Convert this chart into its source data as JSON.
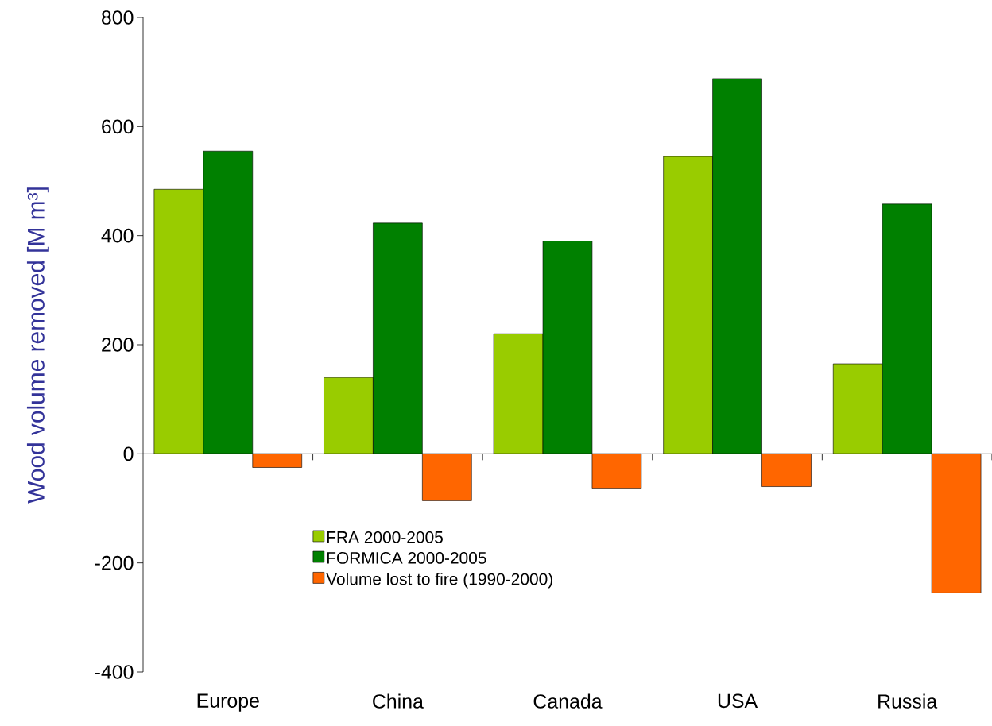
{
  "chart_data": {
    "type": "bar",
    "ylabel": "Wood volume removed [M m³]",
    "categories": [
      "Europe",
      "China",
      "Canada",
      "USA",
      "Russia"
    ],
    "series": [
      {
        "name": "FRA 2000-2005",
        "color": "#99cc00",
        "values": [
          485,
          140,
          220,
          545,
          165
        ]
      },
      {
        "name": "FORMICA 2000-2005",
        "color": "#008000",
        "values": [
          555,
          423,
          390,
          688,
          458
        ]
      },
      {
        "name": "Volume lost to fire (1990-2000)",
        "color": "#ff6600",
        "values": [
          -25,
          -86,
          -63,
          -60,
          -255
        ]
      }
    ],
    "ylim": [
      -400,
      800
    ],
    "yticks": [
      -400,
      -200,
      0,
      200,
      400,
      600,
      800
    ],
    "legend": "bottom left"
  }
}
